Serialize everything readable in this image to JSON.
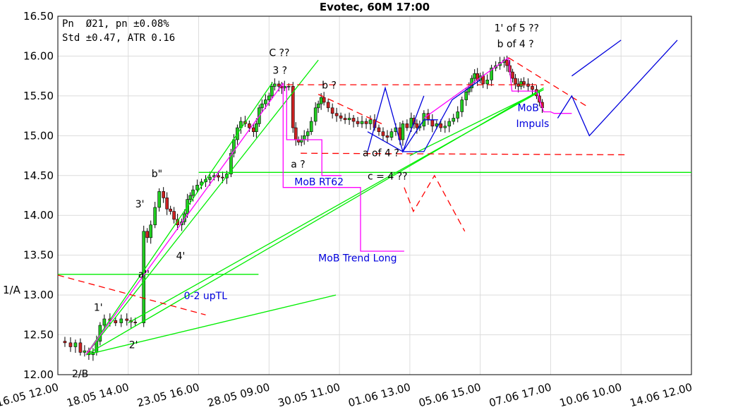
{
  "chart_data": {
    "type": "candlestick",
    "title": "Evotec, 60M 17:00",
    "ylabel": "1/A",
    "ylim": [
      12.0,
      16.5
    ],
    "xlim": [
      0,
      900
    ],
    "grid": true,
    "y_ticks": [
      "12.00",
      "12.50",
      "13.00",
      "13.50",
      "14.00",
      "14.50",
      "15.00",
      "15.50",
      "16.00",
      "16.50"
    ],
    "x_ticks": [
      {
        "x": 0,
        "label": "16.05 12.00"
      },
      {
        "x": 100,
        "label": "18.05 14.00"
      },
      {
        "x": 200,
        "label": "23.05 16.00"
      },
      {
        "x": 300,
        "label": "28.05 09.00"
      },
      {
        "x": 400,
        "label": "30.05 11.00"
      },
      {
        "x": 500,
        "label": "01.06 13.00"
      },
      {
        "x": 600,
        "label": "05.06 15.00"
      },
      {
        "x": 700,
        "label": "07.06 17.00"
      },
      {
        "x": 800,
        "label": "10.06 10.00"
      },
      {
        "x": 900,
        "label": "14.06 12.00"
      }
    ],
    "stats": [
      "Pn  Ø21, pn ±0.08%",
      "Std ±0.47, ATR 0.16"
    ],
    "price_path": [
      [
        0,
        12.42
      ],
      [
        10,
        12.4
      ],
      [
        18,
        12.35
      ],
      [
        25,
        12.4
      ],
      [
        32,
        12.28
      ],
      [
        38,
        12.3
      ],
      [
        44,
        12.25
      ],
      [
        50,
        12.28
      ],
      [
        55,
        12.42
      ],
      [
        60,
        12.62
      ],
      [
        66,
        12.7
      ],
      [
        74,
        12.68
      ],
      [
        82,
        12.65
      ],
      [
        90,
        12.7
      ],
      [
        98,
        12.68
      ],
      [
        104,
        12.66
      ],
      [
        110,
        12.65
      ],
      [
        122,
        13.8
      ],
      [
        127,
        13.72
      ],
      [
        132,
        13.88
      ],
      [
        138,
        14.1
      ],
      [
        144,
        14.3
      ],
      [
        150,
        14.22
      ],
      [
        155,
        14.08
      ],
      [
        160,
        14.05
      ],
      [
        165,
        13.95
      ],
      [
        170,
        13.88
      ],
      [
        176,
        13.92
      ],
      [
        180,
        14.02
      ],
      [
        184,
        14.2
      ],
      [
        188,
        14.25
      ],
      [
        192,
        14.32
      ],
      [
        198,
        14.38
      ],
      [
        204,
        14.42
      ],
      [
        210,
        14.45
      ],
      [
        216,
        14.48
      ],
      [
        222,
        14.5
      ],
      [
        228,
        14.48
      ],
      [
        234,
        14.47
      ],
      [
        240,
        14.52
      ],
      [
        246,
        14.78
      ],
      [
        250,
        14.95
      ],
      [
        255,
        15.1
      ],
      [
        260,
        15.18
      ],
      [
        266,
        15.15
      ],
      [
        272,
        15.1
      ],
      [
        278,
        15.05
      ],
      [
        282,
        15.15
      ],
      [
        286,
        15.35
      ],
      [
        290,
        15.4
      ],
      [
        295,
        15.45
      ],
      [
        300,
        15.5
      ],
      [
        304,
        15.62
      ],
      [
        308,
        15.65
      ],
      [
        314,
        15.62
      ],
      [
        318,
        15.6
      ],
      [
        322,
        15.62
      ],
      [
        328,
        15.62
      ],
      [
        334,
        15.1
      ],
      [
        338,
        14.95
      ],
      [
        342,
        14.92
      ],
      [
        346,
        14.95
      ],
      [
        350,
        15.0
      ],
      [
        355,
        15.05
      ],
      [
        360,
        15.18
      ],
      [
        366,
        15.35
      ],
      [
        370,
        15.4
      ],
      [
        374,
        15.48
      ],
      [
        378,
        15.42
      ],
      [
        384,
        15.35
      ],
      [
        390,
        15.28
      ],
      [
        396,
        15.25
      ],
      [
        402,
        15.22
      ],
      [
        408,
        15.2
      ],
      [
        414,
        15.22
      ],
      [
        420,
        15.18
      ],
      [
        426,
        15.15
      ],
      [
        432,
        15.18
      ],
      [
        438,
        15.15
      ],
      [
        444,
        15.2
      ],
      [
        450,
        15.1
      ],
      [
        456,
        15.05
      ],
      [
        462,
        15.0
      ],
      [
        468,
        14.98
      ],
      [
        474,
        15.05
      ],
      [
        480,
        15.1
      ],
      [
        486,
        14.95
      ],
      [
        490,
        15.15
      ],
      [
        496,
        15.1
      ],
      [
        502,
        15.22
      ],
      [
        506,
        15.15
      ],
      [
        510,
        15.1
      ],
      [
        514,
        15.12
      ],
      [
        520,
        15.28
      ],
      [
        526,
        15.2
      ],
      [
        532,
        15.12
      ],
      [
        538,
        15.15
      ],
      [
        544,
        15.1
      ],
      [
        550,
        15.12
      ],
      [
        556,
        15.18
      ],
      [
        562,
        15.22
      ],
      [
        568,
        15.3
      ],
      [
        574,
        15.45
      ],
      [
        580,
        15.55
      ],
      [
        584,
        15.6
      ],
      [
        588,
        15.72
      ],
      [
        592,
        15.78
      ],
      [
        596,
        15.7
      ],
      [
        600,
        15.75
      ],
      [
        604,
        15.65
      ],
      [
        610,
        15.7
      ],
      [
        616,
        15.85
      ],
      [
        622,
        15.88
      ],
      [
        628,
        15.92
      ],
      [
        634,
        15.95
      ],
      [
        638,
        15.88
      ],
      [
        642,
        15.8
      ],
      [
        646,
        15.72
      ],
      [
        650,
        15.65
      ],
      [
        654,
        15.62
      ],
      [
        658,
        15.68
      ],
      [
        662,
        15.65
      ],
      [
        668,
        15.62
      ],
      [
        674,
        15.58
      ],
      [
        680,
        15.5
      ],
      [
        684,
        15.42
      ],
      [
        688,
        15.35
      ]
    ],
    "annotations": [
      {
        "text": "C ??",
        "x": 300,
        "y": 16.0,
        "color": "#000000"
      },
      {
        "text": "3 ?",
        "x": 305,
        "y": 15.78,
        "color": "#000000"
      },
      {
        "text": "b ?",
        "x": 375,
        "y": 15.59,
        "color": "#000000"
      },
      {
        "text": "1' of 5 ??",
        "x": 620,
        "y": 16.31,
        "color": "#000000"
      },
      {
        "text": "b of 4 ?",
        "x": 624,
        "y": 16.11,
        "color": "#000000"
      },
      {
        "text": "MoB",
        "x": 653,
        "y": 15.31,
        "color": "#0000dd"
      },
      {
        "text": "Impuls",
        "x": 651,
        "y": 15.11,
        "color": "#0000dd"
      },
      {
        "text": "b\"",
        "x": 133,
        "y": 14.48,
        "color": "#000000"
      },
      {
        "text": "a ?",
        "x": 331,
        "y": 14.6,
        "color": "#000000"
      },
      {
        "text": "MoB RT62",
        "x": 336,
        "y": 14.38,
        "color": "#0000dd"
      },
      {
        "text": "a of 4 ?",
        "x": 433,
        "y": 14.74,
        "color": "#000000"
      },
      {
        "text": "c = 4 ??",
        "x": 440,
        "y": 14.45,
        "color": "#000000"
      },
      {
        "text": "3'",
        "x": 110,
        "y": 14.1,
        "color": "#000000"
      },
      {
        "text": "4'",
        "x": 168,
        "y": 13.45,
        "color": "#000000"
      },
      {
        "text": "a''",
        "x": 114,
        "y": 13.22,
        "color": "#000000"
      },
      {
        "text": "MoB Trend Long",
        "x": 370,
        "y": 13.42,
        "color": "#0000dd"
      },
      {
        "text": "0-2 upTL",
        "x": 179,
        "y": 12.95,
        "color": "#0000dd"
      },
      {
        "text": "1'",
        "x": 51,
        "y": 12.8,
        "color": "#000000"
      },
      {
        "text": "2'",
        "x": 101,
        "y": 12.33,
        "color": "#000000"
      },
      {
        "text": "2/B",
        "x": 20,
        "y": 11.97,
        "color": "#000000"
      }
    ],
    "lines": [
      {
        "color": "#00ee00",
        "dash": false,
        "points": [
          [
            0,
            13.26
          ],
          [
            285,
            13.26
          ]
        ]
      },
      {
        "color": "#00ee00",
        "dash": false,
        "points": [
          [
            200,
            14.54
          ],
          [
            900,
            14.54
          ]
        ]
      },
      {
        "color": "#00ee00",
        "dash": false,
        "points": [
          [
            40,
            12.25
          ],
          [
            305,
            15.67
          ]
        ]
      },
      {
        "color": "#00ee00",
        "dash": false,
        "points": [
          [
            40,
            12.25
          ],
          [
            370,
            15.95
          ]
        ]
      },
      {
        "color": "#00ee00",
        "dash": false,
        "points": [
          [
            40,
            12.25
          ],
          [
            395,
            13.0
          ]
        ]
      },
      {
        "color": "#00ee00",
        "dash": false,
        "points": [
          [
            40,
            12.25
          ],
          [
            690,
            15.6
          ]
        ]
      },
      {
        "color": "#00ee00",
        "dash": false,
        "points": [
          [
            100,
            12.65
          ],
          [
            690,
            15.58
          ]
        ]
      },
      {
        "color": "#00ee00",
        "dash": false,
        "points": [
          [
            500,
            14.75
          ],
          [
            690,
            15.58
          ]
        ]
      },
      {
        "color": "#ff00ff",
        "dash": false,
        "points": [
          [
            40,
            12.25
          ],
          [
            320,
            15.66
          ]
        ]
      },
      {
        "color": "#ff00ff",
        "dash": false,
        "points": [
          [
            520,
            15.22
          ],
          [
            640,
            15.98
          ]
        ]
      },
      {
        "color": "#ff00ff",
        "dash": false,
        "points": [
          [
            320,
            15.66
          ],
          [
            320,
            14.35
          ],
          [
            430,
            14.35
          ],
          [
            430,
            13.55
          ],
          [
            492,
            13.55
          ]
        ]
      },
      {
        "color": "#ff00ff",
        "dash": false,
        "points": [
          [
            325,
            15.62
          ],
          [
            325,
            14.95
          ],
          [
            375,
            14.95
          ],
          [
            375,
            14.5
          ],
          [
            403,
            14.5
          ]
        ]
      },
      {
        "color": "#ff00ff",
        "dash": false,
        "points": [
          [
            640,
            15.98
          ],
          [
            645,
            15.56
          ],
          [
            680,
            15.56
          ],
          [
            690,
            15.3
          ],
          [
            700,
            15.3
          ],
          [
            705,
            15.28
          ],
          [
            730,
            15.28
          ]
        ]
      },
      {
        "color": "#ff0000",
        "dash": true,
        "points": [
          [
            0,
            13.25
          ],
          [
            210,
            12.75
          ]
        ]
      },
      {
        "color": "#ff0000",
        "dash": true,
        "points": [
          [
            325,
            15.64
          ],
          [
            690,
            15.64
          ]
        ]
      },
      {
        "color": "#ff0000",
        "dash": true,
        "points": [
          [
            345,
            14.78
          ],
          [
            810,
            14.76
          ]
        ]
      },
      {
        "color": "#ff0000",
        "dash": true,
        "points": [
          [
            370,
            15.52
          ],
          [
            460,
            15.15
          ]
        ]
      },
      {
        "color": "#ff0000",
        "dash": true,
        "points": [
          [
            640,
            15.98
          ],
          [
            755,
            15.35
          ]
        ]
      },
      {
        "color": "#ff0000",
        "dash": true,
        "points": [
          [
            492,
            14.35
          ],
          [
            505,
            14.05
          ],
          [
            535,
            14.5
          ],
          [
            578,
            13.8
          ]
        ]
      },
      {
        "color": "#0000dd",
        "dash": false,
        "points": [
          [
            440,
            14.8
          ],
          [
            465,
            15.6
          ],
          [
            490,
            14.8
          ],
          [
            520,
            15.5
          ]
        ]
      },
      {
        "color": "#0000dd",
        "dash": false,
        "points": [
          [
            440,
            15.05
          ],
          [
            490,
            14.8
          ],
          [
            520,
            15.2
          ],
          [
            540,
            15.2
          ]
        ]
      },
      {
        "color": "#0000dd",
        "dash": false,
        "points": [
          [
            490,
            14.8
          ],
          [
            520,
            14.8
          ],
          [
            560,
            15.45
          ],
          [
            600,
            15.7
          ]
        ]
      },
      {
        "color": "#0000dd",
        "dash": false,
        "points": [
          [
            710,
            15.22
          ],
          [
            730,
            15.5
          ],
          [
            755,
            15.0
          ],
          [
            880,
            16.2
          ]
        ]
      },
      {
        "color": "#0000dd",
        "dash": false,
        "points": [
          [
            730,
            15.75
          ],
          [
            800,
            16.2
          ]
        ]
      }
    ]
  }
}
